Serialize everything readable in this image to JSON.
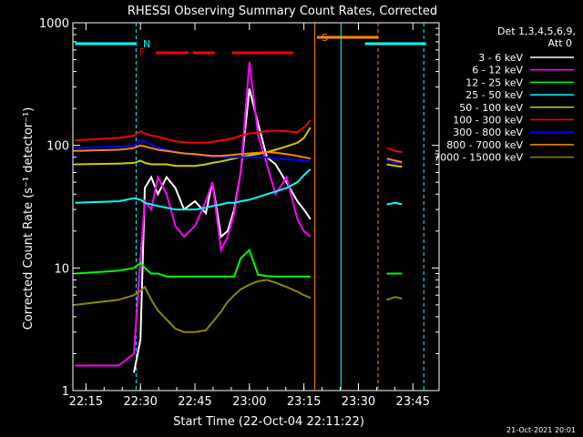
{
  "chart_data": {
    "type": "line",
    "title": "RHESSI Observing Summary Count Rates, Corrected",
    "xlabel": "Start Time (22-Oct-04 22:11:22)",
    "ylabel": "Corrected Count Rate (s⁻¹ detector⁻¹)",
    "ylim": [
      1,
      1000
    ],
    "yscale": "log",
    "y_ticks": [
      "1",
      "10",
      "100",
      "1000"
    ],
    "x_ticks": [
      "22:15",
      "22:30",
      "22:45",
      "23:00",
      "23:15",
      "23:30",
      "23:45"
    ],
    "legend_title": [
      "Det 1,3,4,5,6,9,",
      "Att 0"
    ],
    "footer_date": "21-Oct-2021 20:01",
    "flags": {
      "N": "N",
      "F": "F",
      "S": "S"
    },
    "colors": {
      "3-6": "#ffffff",
      "6-12": "#ff00ff",
      "12-25": "#00ff00",
      "25-50": "#00ffff",
      "50-100": "#cccc00",
      "100-300": "#ff0000",
      "300-800": "#0000ff",
      "800-7000": "#ff8800",
      "7000-15000": "#888800",
      "flag_orange": "#ff8800"
    },
    "series": [
      {
        "name": "3 - 6 keV",
        "key": "3-6"
      },
      {
        "name": "6 - 12 keV",
        "key": "6-12"
      },
      {
        "name": "12 - 25 keV",
        "key": "12-25"
      },
      {
        "name": "25 - 50 keV",
        "key": "25-50"
      },
      {
        "name": "50 - 100 keV",
        "key": "50-100"
      },
      {
        "name": "100 - 300 keV",
        "key": "100-300"
      },
      {
        "name": "300 - 800 keV",
        "key": "300-800"
      },
      {
        "name": "800 - 7000 keV",
        "key": "800-7000"
      },
      {
        "name": "7000 - 15000 keV",
        "key": "7000-15000"
      }
    ],
    "data": {
      "x": [
        22.2,
        22.4,
        22.47,
        22.5,
        22.52,
        22.55,
        22.58,
        22.62,
        22.66,
        22.7,
        22.75,
        22.8,
        22.83,
        22.87,
        22.9,
        22.93,
        22.96,
        23.0,
        23.04,
        23.08,
        23.12,
        23.17,
        23.22,
        23.25,
        23.28
      ],
      "3-6": [
        null,
        null,
        1.4,
        2.6,
        45,
        55,
        40,
        55,
        45,
        30,
        35,
        28,
        50,
        18,
        20,
        30,
        60,
        290,
        150,
        80,
        70,
        50,
        35,
        30,
        25
      ],
      "6-12": [
        1.6,
        1.6,
        2,
        12,
        35,
        30,
        55,
        40,
        22,
        18,
        22,
        35,
        50,
        14,
        18,
        28,
        60,
        480,
        120,
        70,
        40,
        55,
        25,
        20,
        18
      ],
      "12-25": [
        9,
        9.5,
        10,
        11,
        10,
        9,
        9,
        8.5,
        8.5,
        8.5,
        8.5,
        8.5,
        8.5,
        8.5,
        8.5,
        8.5,
        12,
        14,
        8.8,
        8.6,
        8.5,
        8.5,
        8.5,
        8.5,
        8.5
      ],
      "25-50": [
        34,
        35,
        37,
        36,
        34,
        33,
        32,
        31,
        30,
        30,
        30,
        31,
        32,
        33,
        34,
        34,
        35,
        36,
        38,
        40,
        42,
        45,
        50,
        57,
        64
      ],
      "50-100": [
        70,
        71,
        72,
        75,
        72,
        70,
        70,
        70,
        68,
        68,
        68,
        70,
        72,
        74,
        76,
        78,
        80,
        83,
        85,
        88,
        92,
        98,
        105,
        115,
        140
      ],
      "100-300": [
        110,
        115,
        120,
        130,
        125,
        120,
        118,
        112,
        108,
        106,
        105,
        105,
        107,
        110,
        112,
        115,
        120,
        125,
        128,
        130,
        132,
        130,
        128,
        140,
        160
      ],
      "300-800": [
        95,
        98,
        100,
        110,
        108,
        102,
        96,
        92,
        88,
        86,
        84,
        82,
        80,
        80,
        80,
        80,
        80,
        80,
        80,
        80,
        78,
        77,
        76,
        75,
        74
      ],
      "800-7000": [
        90,
        92,
        95,
        100,
        98,
        95,
        92,
        90,
        88,
        86,
        85,
        83,
        82,
        82,
        83,
        84,
        85,
        86,
        87,
        88,
        87,
        85,
        82,
        80,
        78
      ],
      "7000-15000": [
        5,
        5.5,
        6,
        6.5,
        7,
        5.5,
        4.5,
        3.8,
        3.2,
        3.0,
        3.0,
        3.1,
        3.6,
        4.4,
        5.3,
        6.0,
        6.7,
        7.3,
        7.8,
        8.0,
        7.6,
        7.0,
        6.4,
        6.0,
        5.7
      ]
    },
    "late_x": [
      23.63,
      23.67,
      23.7
    ],
    "late": {
      "12-25": [
        9,
        9,
        9
      ],
      "25-50": [
        33,
        34,
        33
      ],
      "50-100": [
        70,
        68,
        67
      ],
      "100-300": [
        95,
        90,
        88
      ],
      "300-800": [
        75,
        73,
        72
      ],
      "800-7000": [
        78,
        75,
        73
      ],
      "7000-15000": [
        5.5,
        5.8,
        5.6
      ]
    }
  }
}
